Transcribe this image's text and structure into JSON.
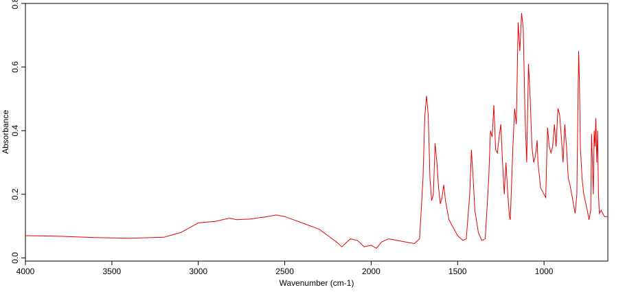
{
  "chart_data": {
    "type": "line",
    "x_label": "Wavenumber (cm-1)",
    "y_label": "Absorbance",
    "xlim": [
      4000,
      631
    ],
    "ylim": [
      -0.01,
      0.8
    ],
    "xticks": [
      4000,
      3500,
      3000,
      2500,
      2000,
      1500,
      1000
    ],
    "yticks": [
      {
        "value": 0,
        "label": "0.0"
      },
      0.2,
      0.4,
      0.6,
      0.8
    ],
    "x": [
      4000,
      3800,
      3600,
      3400,
      3200,
      3100,
      3050,
      3000,
      2900,
      2820,
      2780,
      2700,
      2600,
      2550,
      2500,
      2450,
      2400,
      2300,
      2250,
      2200,
      2170,
      2120,
      2080,
      2040,
      2000,
      1970,
      1940,
      1900,
      1850,
      1800,
      1750,
      1720,
      1700,
      1690,
      1680,
      1670,
      1660,
      1650,
      1640,
      1630,
      1620,
      1610,
      1600,
      1590,
      1580,
      1570,
      1550,
      1500,
      1470,
      1450,
      1430,
      1420,
      1410,
      1400,
      1380,
      1360,
      1340,
      1320,
      1310,
      1300,
      1290,
      1280,
      1270,
      1260,
      1250,
      1240,
      1230,
      1220,
      1210,
      1200,
      1195,
      1180,
      1170,
      1160,
      1150,
      1140,
      1130,
      1120,
      1110,
      1100,
      1090,
      1080,
      1070,
      1060,
      1050,
      1040,
      1035,
      1020,
      1000,
      990,
      980,
      970,
      960,
      950,
      940,
      930,
      920,
      910,
      900,
      890,
      880,
      870,
      860,
      850,
      840,
      820,
      810,
      800,
      795,
      790,
      780,
      770,
      750,
      740,
      730,
      725,
      720,
      715,
      710,
      705,
      700,
      695,
      690,
      685,
      680,
      670,
      660,
      650,
      640,
      631
    ],
    "series": [
      {
        "color": "#e00000",
        "values": [
          0.07,
          0.068,
          0.064,
          0.062,
          0.065,
          0.08,
          0.095,
          0.11,
          0.115,
          0.125,
          0.12,
          0.122,
          0.13,
          0.135,
          0.13,
          0.12,
          0.11,
          0.09,
          0.07,
          0.05,
          0.035,
          0.06,
          0.055,
          0.035,
          0.04,
          0.03,
          0.05,
          0.06,
          0.055,
          0.05,
          0.045,
          0.06,
          0.25,
          0.44,
          0.51,
          0.45,
          0.25,
          0.18,
          0.2,
          0.36,
          0.3,
          0.22,
          0.17,
          0.19,
          0.23,
          0.18,
          0.12,
          0.07,
          0.055,
          0.06,
          0.2,
          0.34,
          0.25,
          0.15,
          0.08,
          0.055,
          0.06,
          0.25,
          0.4,
          0.38,
          0.48,
          0.34,
          0.33,
          0.38,
          0.42,
          0.3,
          0.2,
          0.3,
          0.2,
          0.13,
          0.12,
          0.35,
          0.47,
          0.42,
          0.74,
          0.65,
          0.77,
          0.72,
          0.45,
          0.3,
          0.61,
          0.5,
          0.35,
          0.3,
          0.32,
          0.37,
          0.3,
          0.22,
          0.2,
          0.19,
          0.41,
          0.35,
          0.33,
          0.35,
          0.42,
          0.35,
          0.47,
          0.45,
          0.38,
          0.3,
          0.42,
          0.35,
          0.25,
          0.23,
          0.2,
          0.14,
          0.2,
          0.65,
          0.55,
          0.35,
          0.25,
          0.2,
          0.15,
          0.12,
          0.15,
          0.39,
          0.3,
          0.2,
          0.4,
          0.35,
          0.44,
          0.3,
          0.4,
          0.2,
          0.14,
          0.15,
          0.14,
          0.13,
          0.13,
          0.13
        ]
      }
    ]
  }
}
